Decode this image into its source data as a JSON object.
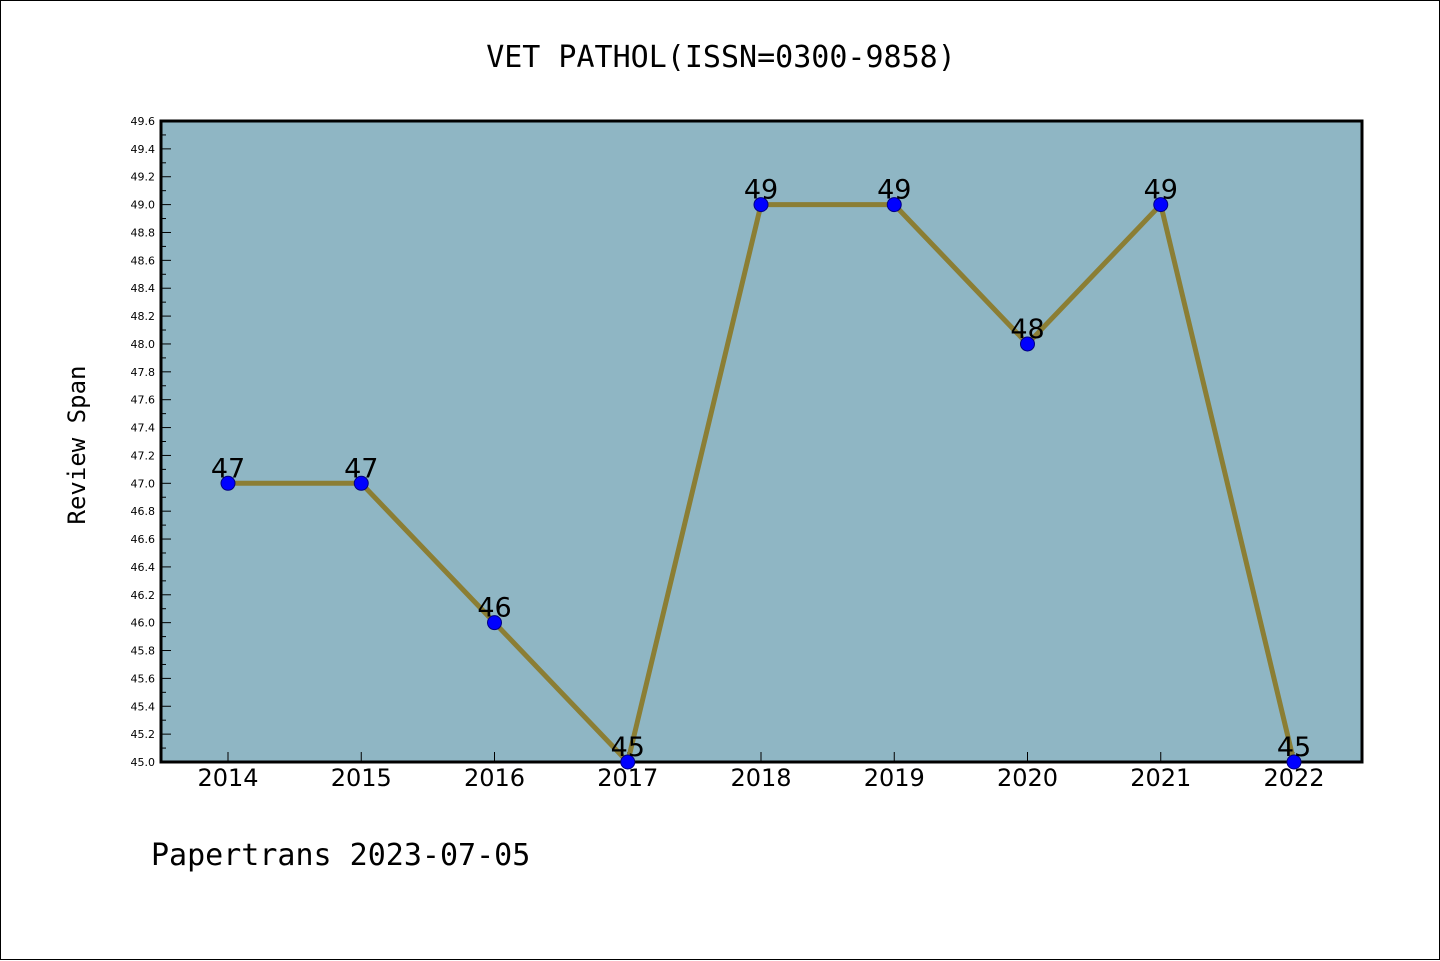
{
  "chart_data": {
    "type": "line",
    "title": "VET PATHOL(ISSN=0300-9858)",
    "xlabel": "",
    "ylabel": "Review Span",
    "categories": [
      "2014",
      "2015",
      "2016",
      "2017",
      "2018",
      "2019",
      "2020",
      "2021",
      "2022"
    ],
    "values": [
      47,
      47,
      46,
      45,
      49,
      49,
      48,
      49,
      45
    ],
    "data_labels": [
      "47",
      "47",
      "46",
      "45",
      "49",
      "49",
      "48",
      "49",
      "45"
    ],
    "ylim": [
      45.0,
      49.6
    ],
    "yticks": [
      "45.0",
      "45.2",
      "45.4",
      "45.6",
      "45.8",
      "46.0",
      "46.2",
      "46.4",
      "46.6",
      "46.8",
      "47.0",
      "47.2",
      "47.4",
      "47.6",
      "47.8",
      "48.0",
      "48.2",
      "48.4",
      "48.6",
      "48.8",
      "49.0",
      "49.2",
      "49.4",
      "49.6"
    ],
    "grid": false,
    "colors": {
      "plot_background": "#8fb6c4",
      "line": "#8b7e34",
      "marker": "#0000ff",
      "marker_edge": "#000080"
    }
  },
  "footer": "Papertrans 2023-07-05"
}
